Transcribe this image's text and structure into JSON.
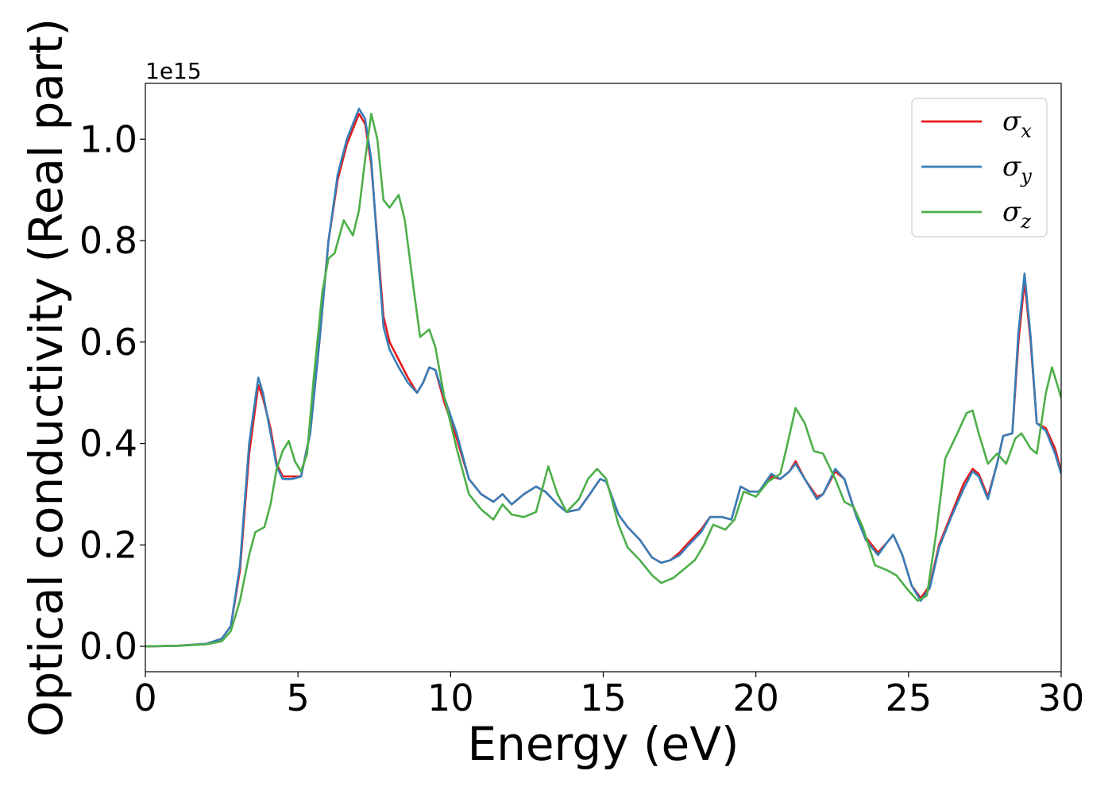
{
  "chart_data": {
    "type": "line",
    "title": "",
    "xlabel": "Energy (eV)",
    "ylabel": "Optical conductivity (Real part)",
    "y_offset_label": "1e15",
    "xlim": [
      0,
      30
    ],
    "ylim": [
      -0.05,
      1.11
    ],
    "x_ticks": [
      0,
      5,
      10,
      15,
      20,
      25,
      30
    ],
    "y_ticks": [
      0.0,
      0.2,
      0.4,
      0.6,
      0.8,
      1.0
    ],
    "x_tick_labels": [
      "0",
      "5",
      "10",
      "15",
      "20",
      "25",
      "30"
    ],
    "y_tick_labels": [
      "0.0",
      "0.2",
      "0.4",
      "0.6",
      "0.8",
      "1.0"
    ],
    "grid": false,
    "legend_position": "top-right",
    "series": [
      {
        "name": "σx",
        "legend_base": "σ",
        "legend_sub": "x",
        "color": "#e41a1c",
        "points": [
          [
            0,
            0.0
          ],
          [
            1,
            0.001
          ],
          [
            2,
            0.005
          ],
          [
            2.5,
            0.015
          ],
          [
            2.8,
            0.04
          ],
          [
            3.1,
            0.15
          ],
          [
            3.4,
            0.38
          ],
          [
            3.7,
            0.515
          ],
          [
            3.85,
            0.49
          ],
          [
            4.1,
            0.43
          ],
          [
            4.3,
            0.36
          ],
          [
            4.5,
            0.335
          ],
          [
            4.8,
            0.335
          ],
          [
            5.1,
            0.335
          ],
          [
            5.4,
            0.42
          ],
          [
            5.7,
            0.6
          ],
          [
            6.0,
            0.8
          ],
          [
            6.3,
            0.92
          ],
          [
            6.6,
            0.99
          ],
          [
            6.8,
            1.02
          ],
          [
            7.0,
            1.05
          ],
          [
            7.2,
            1.03
          ],
          [
            7.4,
            0.95
          ],
          [
            7.6,
            0.8
          ],
          [
            7.8,
            0.65
          ],
          [
            8.0,
            0.6
          ],
          [
            8.3,
            0.565
          ],
          [
            8.6,
            0.53
          ],
          [
            8.9,
            0.5
          ],
          [
            9.1,
            0.52
          ],
          [
            9.3,
            0.55
          ],
          [
            9.5,
            0.545
          ],
          [
            9.8,
            0.48
          ],
          [
            10.2,
            0.41
          ],
          [
            10.6,
            0.33
          ],
          [
            11.0,
            0.3
          ],
          [
            11.4,
            0.285
          ],
          [
            11.7,
            0.3
          ],
          [
            12.0,
            0.28
          ],
          [
            12.4,
            0.3
          ],
          [
            12.8,
            0.315
          ],
          [
            13.1,
            0.305
          ],
          [
            13.5,
            0.28
          ],
          [
            13.8,
            0.265
          ],
          [
            14.2,
            0.27
          ],
          [
            14.5,
            0.295
          ],
          [
            14.9,
            0.33
          ],
          [
            15.1,
            0.325
          ],
          [
            15.5,
            0.26
          ],
          [
            15.8,
            0.235
          ],
          [
            16.2,
            0.21
          ],
          [
            16.6,
            0.175
          ],
          [
            16.9,
            0.165
          ],
          [
            17.2,
            0.17
          ],
          [
            17.5,
            0.185
          ],
          [
            17.8,
            0.205
          ],
          [
            18.2,
            0.23
          ],
          [
            18.5,
            0.255
          ],
          [
            18.9,
            0.255
          ],
          [
            19.2,
            0.25
          ],
          [
            19.5,
            0.315
          ],
          [
            19.8,
            0.305
          ],
          [
            20.1,
            0.305
          ],
          [
            20.5,
            0.335
          ],
          [
            20.8,
            0.33
          ],
          [
            21.1,
            0.345
          ],
          [
            21.3,
            0.365
          ],
          [
            21.6,
            0.33
          ],
          [
            22.0,
            0.295
          ],
          [
            22.2,
            0.3
          ],
          [
            22.6,
            0.345
          ],
          [
            22.9,
            0.33
          ],
          [
            23.3,
            0.255
          ],
          [
            23.6,
            0.215
          ],
          [
            24.0,
            0.185
          ],
          [
            24.3,
            0.205
          ],
          [
            24.5,
            0.22
          ],
          [
            24.8,
            0.18
          ],
          [
            25.1,
            0.12
          ],
          [
            25.4,
            0.095
          ],
          [
            25.7,
            0.12
          ],
          [
            26.0,
            0.2
          ],
          [
            26.4,
            0.26
          ],
          [
            26.8,
            0.32
          ],
          [
            27.1,
            0.35
          ],
          [
            27.3,
            0.34
          ],
          [
            27.6,
            0.295
          ],
          [
            27.9,
            0.36
          ],
          [
            28.1,
            0.415
          ],
          [
            28.4,
            0.42
          ],
          [
            28.6,
            0.6
          ],
          [
            28.8,
            0.72
          ],
          [
            29.0,
            0.6
          ],
          [
            29.2,
            0.44
          ],
          [
            29.5,
            0.43
          ],
          [
            29.8,
            0.39
          ],
          [
            30.0,
            0.345
          ]
        ]
      },
      {
        "name": "σy",
        "legend_base": "σ",
        "legend_sub": "y",
        "color": "#377eb8",
        "points": [
          [
            0,
            0.0
          ],
          [
            1,
            0.001
          ],
          [
            2,
            0.005
          ],
          [
            2.5,
            0.015
          ],
          [
            2.8,
            0.04
          ],
          [
            3.1,
            0.16
          ],
          [
            3.4,
            0.4
          ],
          [
            3.7,
            0.53
          ],
          [
            3.85,
            0.5
          ],
          [
            4.1,
            0.42
          ],
          [
            4.3,
            0.355
          ],
          [
            4.5,
            0.33
          ],
          [
            4.8,
            0.33
          ],
          [
            5.1,
            0.335
          ],
          [
            5.4,
            0.42
          ],
          [
            5.7,
            0.6
          ],
          [
            6.0,
            0.8
          ],
          [
            6.3,
            0.93
          ],
          [
            6.6,
            1.0
          ],
          [
            6.8,
            1.03
          ],
          [
            7.0,
            1.06
          ],
          [
            7.2,
            1.04
          ],
          [
            7.4,
            0.96
          ],
          [
            7.6,
            0.79
          ],
          [
            7.8,
            0.63
          ],
          [
            8.0,
            0.585
          ],
          [
            8.3,
            0.55
          ],
          [
            8.6,
            0.52
          ],
          [
            8.9,
            0.5
          ],
          [
            9.1,
            0.52
          ],
          [
            9.3,
            0.55
          ],
          [
            9.5,
            0.545
          ],
          [
            9.8,
            0.49
          ],
          [
            10.2,
            0.42
          ],
          [
            10.6,
            0.33
          ],
          [
            11.0,
            0.3
          ],
          [
            11.4,
            0.285
          ],
          [
            11.7,
            0.3
          ],
          [
            12.0,
            0.28
          ],
          [
            12.4,
            0.3
          ],
          [
            12.8,
            0.315
          ],
          [
            13.1,
            0.305
          ],
          [
            13.5,
            0.28
          ],
          [
            13.8,
            0.265
          ],
          [
            14.2,
            0.27
          ],
          [
            14.5,
            0.295
          ],
          [
            14.9,
            0.33
          ],
          [
            15.1,
            0.325
          ],
          [
            15.5,
            0.26
          ],
          [
            15.8,
            0.235
          ],
          [
            16.2,
            0.21
          ],
          [
            16.6,
            0.175
          ],
          [
            16.9,
            0.165
          ],
          [
            17.2,
            0.17
          ],
          [
            17.5,
            0.18
          ],
          [
            17.8,
            0.2
          ],
          [
            18.2,
            0.225
          ],
          [
            18.5,
            0.255
          ],
          [
            18.9,
            0.255
          ],
          [
            19.2,
            0.25
          ],
          [
            19.5,
            0.315
          ],
          [
            19.8,
            0.305
          ],
          [
            20.1,
            0.305
          ],
          [
            20.5,
            0.34
          ],
          [
            20.8,
            0.33
          ],
          [
            21.1,
            0.345
          ],
          [
            21.3,
            0.36
          ],
          [
            21.6,
            0.33
          ],
          [
            22.0,
            0.29
          ],
          [
            22.2,
            0.3
          ],
          [
            22.6,
            0.35
          ],
          [
            22.9,
            0.33
          ],
          [
            23.3,
            0.255
          ],
          [
            23.6,
            0.21
          ],
          [
            24.0,
            0.18
          ],
          [
            24.3,
            0.205
          ],
          [
            24.5,
            0.22
          ],
          [
            24.8,
            0.18
          ],
          [
            25.1,
            0.12
          ],
          [
            25.4,
            0.09
          ],
          [
            25.7,
            0.115
          ],
          [
            26.0,
            0.195
          ],
          [
            26.4,
            0.255
          ],
          [
            26.8,
            0.31
          ],
          [
            27.1,
            0.345
          ],
          [
            27.3,
            0.335
          ],
          [
            27.6,
            0.29
          ],
          [
            27.9,
            0.36
          ],
          [
            28.1,
            0.415
          ],
          [
            28.4,
            0.42
          ],
          [
            28.6,
            0.62
          ],
          [
            28.8,
            0.735
          ],
          [
            29.0,
            0.61
          ],
          [
            29.2,
            0.44
          ],
          [
            29.5,
            0.425
          ],
          [
            29.8,
            0.38
          ],
          [
            30.0,
            0.34
          ]
        ]
      },
      {
        "name": "σz",
        "legend_base": "σ",
        "legend_sub": "z",
        "color": "#4daf4a",
        "points": [
          [
            0,
            0.0
          ],
          [
            1,
            0.001
          ],
          [
            2,
            0.004
          ],
          [
            2.5,
            0.01
          ],
          [
            2.8,
            0.03
          ],
          [
            3.1,
            0.09
          ],
          [
            3.4,
            0.18
          ],
          [
            3.6,
            0.225
          ],
          [
            3.9,
            0.235
          ],
          [
            4.1,
            0.28
          ],
          [
            4.3,
            0.35
          ],
          [
            4.5,
            0.385
          ],
          [
            4.7,
            0.405
          ],
          [
            4.9,
            0.365
          ],
          [
            5.1,
            0.345
          ],
          [
            5.3,
            0.38
          ],
          [
            5.5,
            0.52
          ],
          [
            5.8,
            0.7
          ],
          [
            6.0,
            0.765
          ],
          [
            6.2,
            0.775
          ],
          [
            6.5,
            0.84
          ],
          [
            6.8,
            0.81
          ],
          [
            7.0,
            0.86
          ],
          [
            7.2,
            0.96
          ],
          [
            7.4,
            1.05
          ],
          [
            7.6,
            1.0
          ],
          [
            7.8,
            0.88
          ],
          [
            8.0,
            0.865
          ],
          [
            8.3,
            0.89
          ],
          [
            8.5,
            0.84
          ],
          [
            8.8,
            0.7
          ],
          [
            9.0,
            0.61
          ],
          [
            9.3,
            0.625
          ],
          [
            9.5,
            0.59
          ],
          [
            9.8,
            0.49
          ],
          [
            10.2,
            0.39
          ],
          [
            10.6,
            0.3
          ],
          [
            11.0,
            0.27
          ],
          [
            11.4,
            0.25
          ],
          [
            11.7,
            0.28
          ],
          [
            12.0,
            0.26
          ],
          [
            12.4,
            0.255
          ],
          [
            12.8,
            0.265
          ],
          [
            13.2,
            0.355
          ],
          [
            13.5,
            0.3
          ],
          [
            13.8,
            0.265
          ],
          [
            14.2,
            0.29
          ],
          [
            14.5,
            0.33
          ],
          [
            14.8,
            0.35
          ],
          [
            15.1,
            0.33
          ],
          [
            15.5,
            0.24
          ],
          [
            15.8,
            0.195
          ],
          [
            16.2,
            0.17
          ],
          [
            16.6,
            0.14
          ],
          [
            16.9,
            0.125
          ],
          [
            17.3,
            0.135
          ],
          [
            17.6,
            0.15
          ],
          [
            18.0,
            0.17
          ],
          [
            18.3,
            0.2
          ],
          [
            18.6,
            0.24
          ],
          [
            19.0,
            0.23
          ],
          [
            19.3,
            0.25
          ],
          [
            19.6,
            0.305
          ],
          [
            20.0,
            0.295
          ],
          [
            20.4,
            0.325
          ],
          [
            20.8,
            0.34
          ],
          [
            21.0,
            0.39
          ],
          [
            21.3,
            0.47
          ],
          [
            21.6,
            0.44
          ],
          [
            21.9,
            0.385
          ],
          [
            22.2,
            0.38
          ],
          [
            22.6,
            0.33
          ],
          [
            22.9,
            0.285
          ],
          [
            23.2,
            0.275
          ],
          [
            23.5,
            0.235
          ],
          [
            23.9,
            0.16
          ],
          [
            24.3,
            0.15
          ],
          [
            24.6,
            0.14
          ],
          [
            25.0,
            0.11
          ],
          [
            25.3,
            0.09
          ],
          [
            25.6,
            0.1
          ],
          [
            25.9,
            0.22
          ],
          [
            26.2,
            0.37
          ],
          [
            26.6,
            0.42
          ],
          [
            26.9,
            0.46
          ],
          [
            27.1,
            0.465
          ],
          [
            27.3,
            0.42
          ],
          [
            27.6,
            0.36
          ],
          [
            27.9,
            0.38
          ],
          [
            28.2,
            0.36
          ],
          [
            28.5,
            0.41
          ],
          [
            28.7,
            0.42
          ],
          [
            29.0,
            0.39
          ],
          [
            29.2,
            0.38
          ],
          [
            29.5,
            0.5
          ],
          [
            29.7,
            0.55
          ],
          [
            29.9,
            0.51
          ],
          [
            30.0,
            0.49
          ]
        ]
      }
    ]
  }
}
